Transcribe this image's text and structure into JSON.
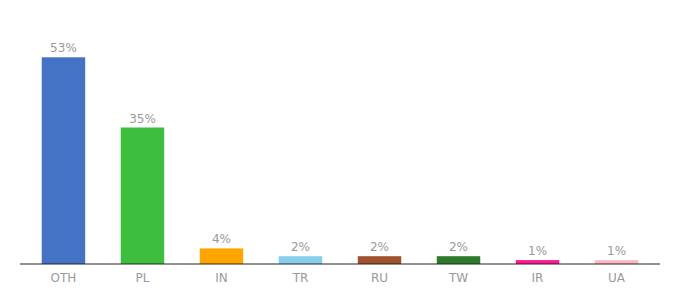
{
  "chart_data": {
    "type": "bar",
    "categories": [
      "OTH",
      "PL",
      "IN",
      "TR",
      "RU",
      "TW",
      "IR",
      "UA"
    ],
    "values": [
      53,
      35,
      4,
      2,
      2,
      2,
      1,
      1
    ],
    "value_labels": [
      "53%",
      "35%",
      "4%",
      "2%",
      "2%",
      "2%",
      "1%",
      "1%"
    ],
    "colors": [
      "#4472C4",
      "#3DBE3D",
      "#FFA500",
      "#87CEEB",
      "#A0522D",
      "#2D7A2D",
      "#FF1493",
      "#FFB6C1"
    ],
    "ylim": [
      0,
      60
    ],
    "tick_labels": "x"
  }
}
